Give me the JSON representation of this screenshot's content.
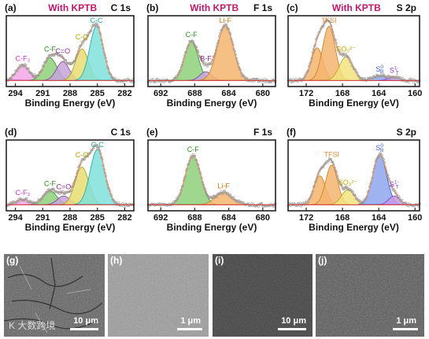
{
  "panels": [
    {
      "label": "(a)",
      "header": "With KPTB",
      "element": "C 1s",
      "xlabel": "Binding Energy (eV)",
      "xticks": [
        294,
        291,
        288,
        285,
        282
      ],
      "xrange": [
        295,
        281
      ],
      "peaks": [
        {
          "name": "C-F₃",
          "center": 293.2,
          "height": 0.25,
          "sigma": 0.7,
          "fill": "#f3a7e6",
          "stroke": "#cc33cc",
          "label_color": "#cc33cc"
        },
        {
          "name": "C-F",
          "center": 290.2,
          "height": 0.36,
          "sigma": 0.75,
          "fill": "#8fd07b",
          "stroke": "#2f8f2f",
          "label_color": "#2b8a1c"
        },
        {
          "name": "C=O",
          "center": 288.8,
          "height": 0.3,
          "sigma": 0.7,
          "fill": "#c7a3d9",
          "stroke": "#7a3f9a",
          "label_color": "#8a2d8a"
        },
        {
          "name": "C-O",
          "center": 286.7,
          "height": 0.5,
          "sigma": 0.7,
          "fill": "#e8dc72",
          "stroke": "#a99a1a",
          "label_color": "#b8a000"
        },
        {
          "name": "C-C",
          "center": 285.1,
          "height": 0.86,
          "sigma": 0.75,
          "fill": "#7fe0da",
          "stroke": "#1aa3a0",
          "label_color": "#1aa3a0"
        }
      ]
    },
    {
      "label": "(b)",
      "header": "With KPTB",
      "element": "F 1s",
      "xlabel": "Binding Energy (eV)",
      "xticks": [
        692,
        688,
        684,
        680
      ],
      "xrange": [
        693.5,
        678.5
      ],
      "peaks": [
        {
          "name": "C-F",
          "center": 688.4,
          "height": 0.62,
          "sigma": 0.8,
          "fill": "#8fd07b",
          "stroke": "#2f8f2f",
          "label_color": "#2b8a1c"
        },
        {
          "name": "B-F",
          "center": 686.7,
          "height": 0.14,
          "sigma": 0.7,
          "fill": "#c7a3d9",
          "stroke": "#7a3f9a",
          "label_color": "#8a2d8a"
        },
        {
          "name": "Li-F",
          "center": 684.4,
          "height": 0.88,
          "sigma": 0.95,
          "fill": "#f5b56e",
          "stroke": "#c77a1d",
          "label_color": "#c47a10"
        }
      ]
    },
    {
      "label": "(c)",
      "header": "With KPTB",
      "element": "S 2p",
      "xlabel": "Binding Energy (eV)",
      "xticks": [
        172,
        168,
        164,
        160
      ],
      "xrange": [
        174,
        159.5
      ],
      "peaks": [
        {
          "name": "",
          "center": 170.8,
          "height": 0.52,
          "sigma": 0.65,
          "fill": "#f5b56e",
          "stroke": "#c77a1d",
          "label_color": "#e08a3a"
        },
        {
          "name": "TFSI",
          "center": 169.5,
          "height": 0.86,
          "sigma": 0.7,
          "fill": "#f5b56e",
          "stroke": "#c77a1d",
          "label_color": "#e08a3a"
        },
        {
          "name": "SO₃²⁻",
          "center": 167.6,
          "height": 0.38,
          "sigma": 0.75,
          "fill": "#f1e37e",
          "stroke": "#b9a21a",
          "label_color": "#c9a800"
        },
        {
          "name": "S_B^0",
          "center": 163.9,
          "height": 0.08,
          "sigma": 0.65,
          "fill": "#8ea6ef",
          "stroke": "#2d4fd0",
          "label_color": "#3d5cd6"
        },
        {
          "name": "S_T^1-",
          "center": 162.3,
          "height": 0.06,
          "sigma": 0.6,
          "fill": "#c79ae8",
          "stroke": "#8a35c9",
          "label_color": "#8a35c9"
        }
      ]
    },
    {
      "label": "(d)",
      "header": "",
      "element": "C 1s",
      "xlabel": "Binding Energy (eV)",
      "xticks": [
        294,
        291,
        288,
        285,
        282
      ],
      "xrange": [
        295,
        281
      ],
      "peaks": [
        {
          "name": "C-F₃",
          "center": 293.2,
          "height": 0.09,
          "sigma": 0.7,
          "fill": "#f3a7e6",
          "stroke": "#cc33cc",
          "label_color": "#cc33cc"
        },
        {
          "name": "C-F",
          "center": 290.2,
          "height": 0.22,
          "sigma": 0.75,
          "fill": "#8fd07b",
          "stroke": "#2f8f2f",
          "label_color": "#2b8a1c"
        },
        {
          "name": "C=O",
          "center": 288.7,
          "height": 0.14,
          "sigma": 0.7,
          "fill": "#c7a3d9",
          "stroke": "#7a3f9a",
          "label_color": "#8a2d8a"
        },
        {
          "name": "C-O",
          "center": 286.7,
          "height": 0.6,
          "sigma": 0.75,
          "fill": "#e8dc72",
          "stroke": "#a99a1a",
          "label_color": "#b8a000"
        },
        {
          "name": "C-C",
          "center": 285.0,
          "height": 0.88,
          "sigma": 0.8,
          "fill": "#7fe0da",
          "stroke": "#1aa3a0",
          "label_color": "#1aa3a0"
        }
      ]
    },
    {
      "label": "(e)",
      "header": "",
      "element": "F 1s",
      "xlabel": "Binding Energy (eV)",
      "xticks": [
        692,
        688,
        684,
        680
      ],
      "xrange": [
        693.5,
        678.5
      ],
      "peaks": [
        {
          "name": "C-F",
          "center": 688.2,
          "height": 0.78,
          "sigma": 0.9,
          "fill": "#8fd07b",
          "stroke": "#2f8f2f",
          "label_color": "#2b8a1c"
        },
        {
          "name": "Li-F",
          "center": 684.6,
          "height": 0.2,
          "sigma": 1.0,
          "fill": "#f5b56e",
          "stroke": "#c77a1d",
          "label_color": "#c47a10"
        }
      ]
    },
    {
      "label": "(f)",
      "header": "",
      "element": "S 2p",
      "xlabel": "Binding Energy (eV)",
      "xticks": [
        172,
        168,
        164,
        160
      ],
      "xrange": [
        174,
        159.5
      ],
      "peaks": [
        {
          "name": "",
          "center": 170.5,
          "height": 0.46,
          "sigma": 0.65,
          "fill": "#f5b56e",
          "stroke": "#c77a1d",
          "label_color": "#e08a3a"
        },
        {
          "name": "TFSI",
          "center": 169.2,
          "height": 0.63,
          "sigma": 0.65,
          "fill": "#f5b56e",
          "stroke": "#c77a1d",
          "label_color": "#e08a3a"
        },
        {
          "name": "SO₃²⁻",
          "center": 167.4,
          "height": 0.24,
          "sigma": 0.7,
          "fill": "#f1e37e",
          "stroke": "#b9a21a",
          "label_color": "#c9a800"
        },
        {
          "name": "S_B^0",
          "center": 163.9,
          "height": 0.8,
          "sigma": 0.75,
          "fill": "#8ea6ef",
          "stroke": "#2d4fd0",
          "label_color": "#3d5cd6"
        },
        {
          "name": "S_T^1-",
          "center": 162.3,
          "height": 0.14,
          "sigma": 0.6,
          "fill": "#c79ae8",
          "stroke": "#8a35c9",
          "label_color": "#8a35c9"
        }
      ]
    }
  ],
  "sem": [
    {
      "label": "(g)",
      "scale": "10 μm"
    },
    {
      "label": "(h)",
      "scale": "1 μm"
    },
    {
      "label": "(i)",
      "scale": "10 μm"
    },
    {
      "label": "(j)",
      "scale": "1 μm"
    }
  ],
  "watermark": "K 大数跨境",
  "colors": {
    "header": "#c0186b",
    "axis": "#222222",
    "scatter": "#9a9a9a",
    "envelope": "#e89a6a",
    "background_line": "#d33a3a"
  }
}
